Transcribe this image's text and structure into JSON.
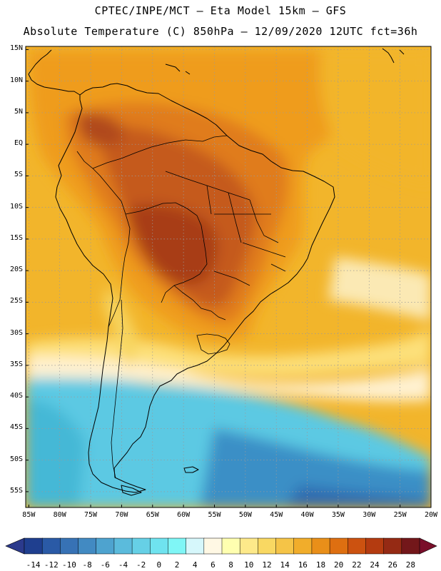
{
  "header": {
    "title_line1": "CPTEC/INPE/MCT – Eta Model 15km – GFS",
    "title_line2": "Absolute Temperature (C) 850hPa – 12/09/2020 12UTC fct=36h"
  },
  "axes": {
    "lat_labels": [
      "15N",
      "10N",
      "5N",
      "EQ",
      "5S",
      "10S",
      "15S",
      "20S",
      "25S",
      "30S",
      "35S",
      "40S",
      "45S",
      "50S",
      "55S"
    ],
    "lon_labels": [
      "85W",
      "80W",
      "75W",
      "70W",
      "65W",
      "60W",
      "55W",
      "50W",
      "45W",
      "40W",
      "35W",
      "30W",
      "25W",
      "20W"
    ],
    "lat_range": [
      15.5,
      -57.5
    ],
    "lon_range": [
      -85.5,
      -20
    ],
    "grid": true
  },
  "colorbar": {
    "labels": [
      "-14",
      "-12",
      "-10",
      "-8",
      "-6",
      "-4",
      "-2",
      "0",
      "2",
      "4",
      "6",
      "8",
      "10",
      "12",
      "14",
      "16",
      "18",
      "20",
      "22",
      "24",
      "26",
      "28"
    ],
    "colors": [
      "#1f3f8f",
      "#2a5aa6",
      "#3772b5",
      "#428ac2",
      "#4ea3cf",
      "#5bbbdc",
      "#66d0e6",
      "#6fe3ef",
      "#7ff6f6",
      "#d6f7fb",
      "#fff8e4",
      "#ffffb0",
      "#fde98a",
      "#f9d862",
      "#f5c447",
      "#f1ad2b",
      "#e98f19",
      "#de6f11",
      "#cc5210",
      "#b43b10",
      "#952a14",
      "#73171a"
    ],
    "extend_under_color": "#2b3a8c",
    "extend_over_color": "#7a0e2a"
  },
  "colors": {
    "hot_core": "#b84a1c",
    "warm": "#e07c1c",
    "orange": "#ef9c1c",
    "golden": "#f2b52b",
    "yellow": "#f7d560",
    "cream": "#fff8e4",
    "cyan": "#58d3e8",
    "teal": "#45b8d6",
    "blue": "#3a7fb8",
    "coastline": "#000000",
    "grid": "#9a9a9a"
  }
}
